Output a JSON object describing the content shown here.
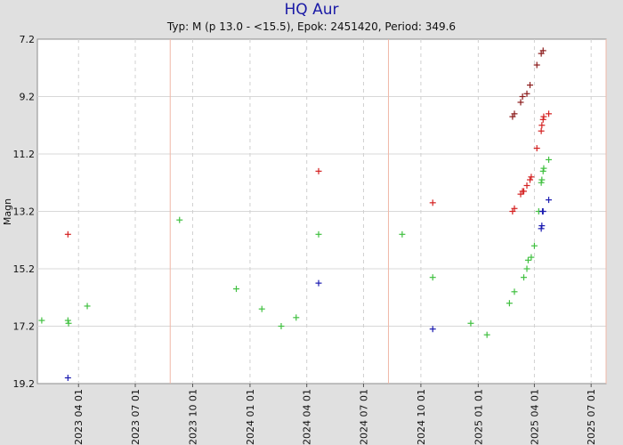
{
  "title": "HQ Aur",
  "subtitle": "Typ: M (p 13.0 - <15.5), Epok: 2451420, Period: 349.6",
  "colors": {
    "background": "#e0e0e0",
    "plot_area": "#ffffff",
    "title": "#1a1aa6",
    "red": "#d42020",
    "darkred": "#8b1a1a",
    "green": "#40c040",
    "blue": "#1a1ab0",
    "maximum_line": "#f0b8a8",
    "minimum_line": "#f0b8a8"
  },
  "chart_data": {
    "type": "scatter",
    "title": "HQ Aur",
    "subtitle": "Typ: M (p 13.0 - <15.5), Epok: 2451420, Period: 349.6",
    "ylabel": "Magn",
    "xlabel": "",
    "y_inverted": true,
    "ylim": [
      7.2,
      19.2
    ],
    "xlim": [
      "2023-01-25",
      "2025-07-25"
    ],
    "yticks": [
      "7.2",
      "9.2",
      "11.2",
      "13.2",
      "15.2",
      "17.2",
      "19.2"
    ],
    "xticks": [
      "2023 04 01",
      "2023 07 01",
      "2023 10 01",
      "2024 01 01",
      "2024 04 01",
      "2024 07 01",
      "2024 10 01",
      "2025 01 01",
      "2025 04 01",
      "2025 07 01"
    ],
    "grid": true,
    "vertical_markers": [
      "2023-08-26",
      "2024-08-10",
      "2025-07-25"
    ],
    "series": [
      {
        "color": "red",
        "points": [
          {
            "x": "2023-03-15",
            "y": 14.0
          },
          {
            "x": "2024-04-20",
            "y": 11.8
          },
          {
            "x": "2024-10-20",
            "y": 12.9
          },
          {
            "x": "2025-02-25",
            "y": 13.2
          },
          {
            "x": "2025-02-28",
            "y": 13.1
          },
          {
            "x": "2025-03-10",
            "y": 12.6
          },
          {
            "x": "2025-03-13",
            "y": 12.5
          },
          {
            "x": "2025-03-15",
            "y": 12.5
          },
          {
            "x": "2025-03-20",
            "y": 12.3
          },
          {
            "x": "2025-03-25",
            "y": 12.1
          },
          {
            "x": "2025-03-27",
            "y": 12.0
          },
          {
            "x": "2025-04-05",
            "y": 11.0
          },
          {
            "x": "2025-04-12",
            "y": 10.4
          },
          {
            "x": "2025-04-13",
            "y": 10.2
          },
          {
            "x": "2025-04-15",
            "y": 10.0
          },
          {
            "x": "2025-04-16",
            "y": 9.9
          },
          {
            "x": "2025-04-24",
            "y": 9.8
          }
        ]
      },
      {
        "color": "darkred",
        "points": [
          {
            "x": "2025-02-25",
            "y": 9.9
          },
          {
            "x": "2025-02-28",
            "y": 9.8
          },
          {
            "x": "2025-03-10",
            "y": 9.4
          },
          {
            "x": "2025-03-13",
            "y": 9.2
          },
          {
            "x": "2025-03-20",
            "y": 9.1
          },
          {
            "x": "2025-03-25",
            "y": 8.8
          },
          {
            "x": "2025-04-05",
            "y": 8.1
          },
          {
            "x": "2025-04-12",
            "y": 7.7
          },
          {
            "x": "2025-04-15",
            "y": 7.6
          }
        ]
      },
      {
        "color": "green",
        "points": [
          {
            "x": "2023-02-01",
            "y": 17.0
          },
          {
            "x": "2023-03-15",
            "y": 17.0
          },
          {
            "x": "2023-03-16",
            "y": 17.1
          },
          {
            "x": "2023-04-15",
            "y": 16.5
          },
          {
            "x": "2023-09-10",
            "y": 13.5
          },
          {
            "x": "2023-12-10",
            "y": 15.9
          },
          {
            "x": "2024-01-20",
            "y": 16.6
          },
          {
            "x": "2024-02-20",
            "y": 17.2
          },
          {
            "x": "2024-03-15",
            "y": 16.9
          },
          {
            "x": "2024-04-20",
            "y": 14.0
          },
          {
            "x": "2024-09-01",
            "y": 14.0
          },
          {
            "x": "2024-10-20",
            "y": 15.5
          },
          {
            "x": "2024-12-20",
            "y": 17.1
          },
          {
            "x": "2025-01-15",
            "y": 17.5
          },
          {
            "x": "2025-02-20",
            "y": 16.4
          },
          {
            "x": "2025-02-28",
            "y": 16.0
          },
          {
            "x": "2025-03-15",
            "y": 15.5
          },
          {
            "x": "2025-03-20",
            "y": 15.2
          },
          {
            "x": "2025-03-22",
            "y": 14.9
          },
          {
            "x": "2025-03-27",
            "y": 14.8
          },
          {
            "x": "2025-04-01",
            "y": 14.4
          },
          {
            "x": "2025-04-08",
            "y": 13.2
          },
          {
            "x": "2025-04-12",
            "y": 12.2
          },
          {
            "x": "2025-04-13",
            "y": 12.1
          },
          {
            "x": "2025-04-15",
            "y": 11.8
          },
          {
            "x": "2025-04-16",
            "y": 11.7
          },
          {
            "x": "2025-04-24",
            "y": 11.4
          }
        ]
      },
      {
        "color": "blue",
        "points": [
          {
            "x": "2023-03-15",
            "y": 19.0
          },
          {
            "x": "2024-04-20",
            "y": 15.7
          },
          {
            "x": "2024-10-20",
            "y": 17.3
          },
          {
            "x": "2025-04-12",
            "y": 13.8
          },
          {
            "x": "2025-04-13",
            "y": 13.7
          },
          {
            "x": "2025-04-14",
            "y": 13.2
          },
          {
            "x": "2025-04-15",
            "y": 13.2
          },
          {
            "x": "2025-04-24",
            "y": 12.8
          }
        ]
      }
    ]
  }
}
